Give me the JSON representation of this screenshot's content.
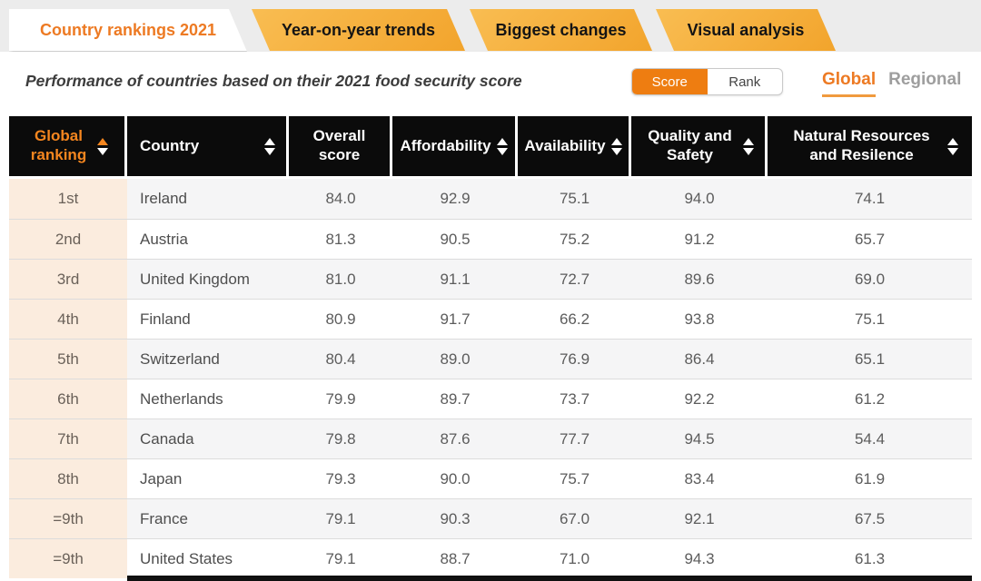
{
  "tabs": [
    {
      "label": "Country rankings 2021",
      "active": true
    },
    {
      "label": "Year-on-year trends",
      "active": false
    },
    {
      "label": "Biggest changes",
      "active": false
    },
    {
      "label": "Visual analysis",
      "active": false
    }
  ],
  "subtitle": "Performance of countries based on their 2021 food security score",
  "toggle": {
    "options": [
      "Score",
      "Rank"
    ],
    "selected": "Score"
  },
  "scope": {
    "options": [
      "Global",
      "Regional"
    ],
    "selected": "Global"
  },
  "colors": {
    "accent_orange": "#ed7a23",
    "button_orange": "#ee7d11",
    "tab_amber": "#f5ad3a",
    "header_bg": "#0b0b0b",
    "header_sorted_text": "#f5861f",
    "rank_column_bg": "#fbecde",
    "row_alt_bg": "#f5f5f6"
  },
  "icons": {
    "sort_asc": "up-triangle",
    "sort_desc": "down-triangle"
  },
  "table": {
    "columns": [
      {
        "label": "Global ranking",
        "sortable": true,
        "sorted": "asc"
      },
      {
        "label": "Country",
        "sortable": true,
        "sorted": null
      },
      {
        "label": "Overall score",
        "sortable": false,
        "sorted": null
      },
      {
        "label": "Affordability",
        "sortable": true,
        "sorted": null
      },
      {
        "label": "Availability",
        "sortable": true,
        "sorted": null
      },
      {
        "label": "Quality and Safety",
        "sortable": true,
        "sorted": null
      },
      {
        "label": "Natural Resources and Resilence",
        "sortable": true,
        "sorted": null
      }
    ],
    "rows": [
      {
        "rank": "1st",
        "country": "Ireland",
        "overall": "84.0",
        "affordability": "92.9",
        "availability": "75.1",
        "quality": "94.0",
        "natural": "74.1"
      },
      {
        "rank": "2nd",
        "country": "Austria",
        "overall": "81.3",
        "affordability": "90.5",
        "availability": "75.2",
        "quality": "91.2",
        "natural": "65.7"
      },
      {
        "rank": "3rd",
        "country": "United Kingdom",
        "overall": "81.0",
        "affordability": "91.1",
        "availability": "72.7",
        "quality": "89.6",
        "natural": "69.0"
      },
      {
        "rank": "4th",
        "country": "Finland",
        "overall": "80.9",
        "affordability": "91.7",
        "availability": "66.2",
        "quality": "93.8",
        "natural": "75.1"
      },
      {
        "rank": "5th",
        "country": "Switzerland",
        "overall": "80.4",
        "affordability": "89.0",
        "availability": "76.9",
        "quality": "86.4",
        "natural": "65.1"
      },
      {
        "rank": "6th",
        "country": "Netherlands",
        "overall": "79.9",
        "affordability": "89.7",
        "availability": "73.7",
        "quality": "92.2",
        "natural": "61.2"
      },
      {
        "rank": "7th",
        "country": "Canada",
        "overall": "79.8",
        "affordability": "87.6",
        "availability": "77.7",
        "quality": "94.5",
        "natural": "54.4"
      },
      {
        "rank": "8th",
        "country": "Japan",
        "overall": "79.3",
        "affordability": "90.0",
        "availability": "75.7",
        "quality": "83.4",
        "natural": "61.9"
      },
      {
        "rank": "=9th",
        "country": "France",
        "overall": "79.1",
        "affordability": "90.3",
        "availability": "67.0",
        "quality": "92.1",
        "natural": "67.5"
      },
      {
        "rank": "=9th",
        "country": "United States",
        "overall": "79.1",
        "affordability": "88.7",
        "availability": "71.0",
        "quality": "94.3",
        "natural": "61.3"
      }
    ]
  }
}
